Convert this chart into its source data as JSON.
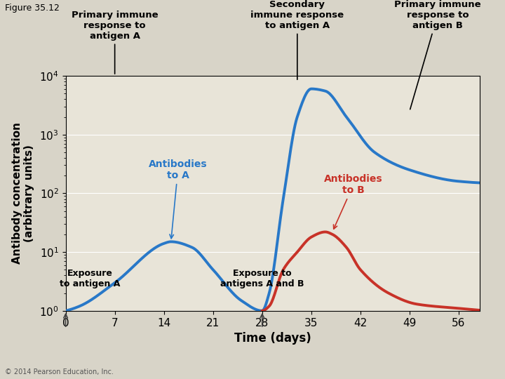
{
  "title": "Figure 35.12",
  "ylabel": "Antibody concentration\n(arbitrary units)",
  "xlabel": "Time (days)",
  "xticks": [
    0,
    7,
    14,
    21,
    28,
    35,
    42,
    49,
    56
  ],
  "ylim_log": [
    0,
    4
  ],
  "bg_color": "#e8e4d8",
  "blue_color": "#2878c8",
  "red_color": "#c83228",
  "annotation_color": "#000000",
  "antibody_a_label_color": "#2878c8",
  "antibody_b_label_color": "#c83228",
  "exposure_arrow_color": "#505050"
}
